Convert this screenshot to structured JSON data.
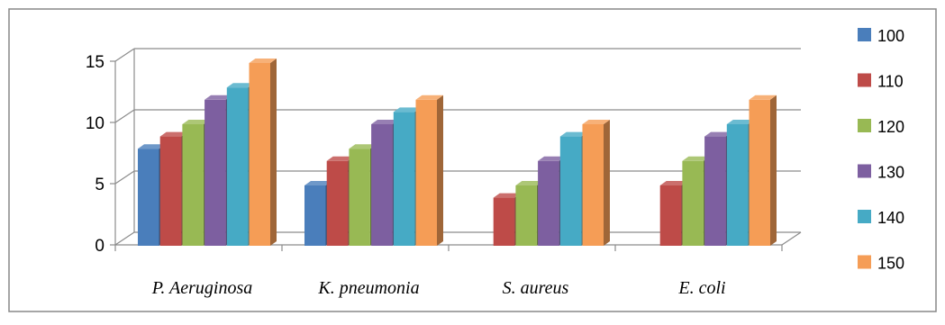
{
  "chart_data": {
    "type": "bar",
    "categories": [
      "P. Aeruginosa",
      "K. pneumonia",
      "S. aureus",
      "E. coli"
    ],
    "series": [
      {
        "name": "100",
        "color": "#4a7ebb",
        "values": [
          8,
          5,
          null,
          null
        ]
      },
      {
        "name": "110",
        "color": "#be4b48",
        "values": [
          9,
          7,
          4,
          5
        ]
      },
      {
        "name": "120",
        "color": "#98b954",
        "values": [
          10,
          8,
          5,
          7
        ]
      },
      {
        "name": "130",
        "color": "#7d5fa0",
        "values": [
          12,
          10,
          7,
          9
        ]
      },
      {
        "name": "140",
        "color": "#46aac5",
        "values": [
          13,
          11,
          9,
          10
        ]
      },
      {
        "name": "150",
        "color": "#f59d56",
        "values": [
          15,
          12,
          10,
          12
        ]
      }
    ],
    "yticks": [
      0,
      5,
      10,
      15
    ],
    "ylim": [
      0,
      15
    ],
    "grid": true,
    "legend": "right",
    "title": "",
    "xlabel": "",
    "ylabel": ""
  }
}
